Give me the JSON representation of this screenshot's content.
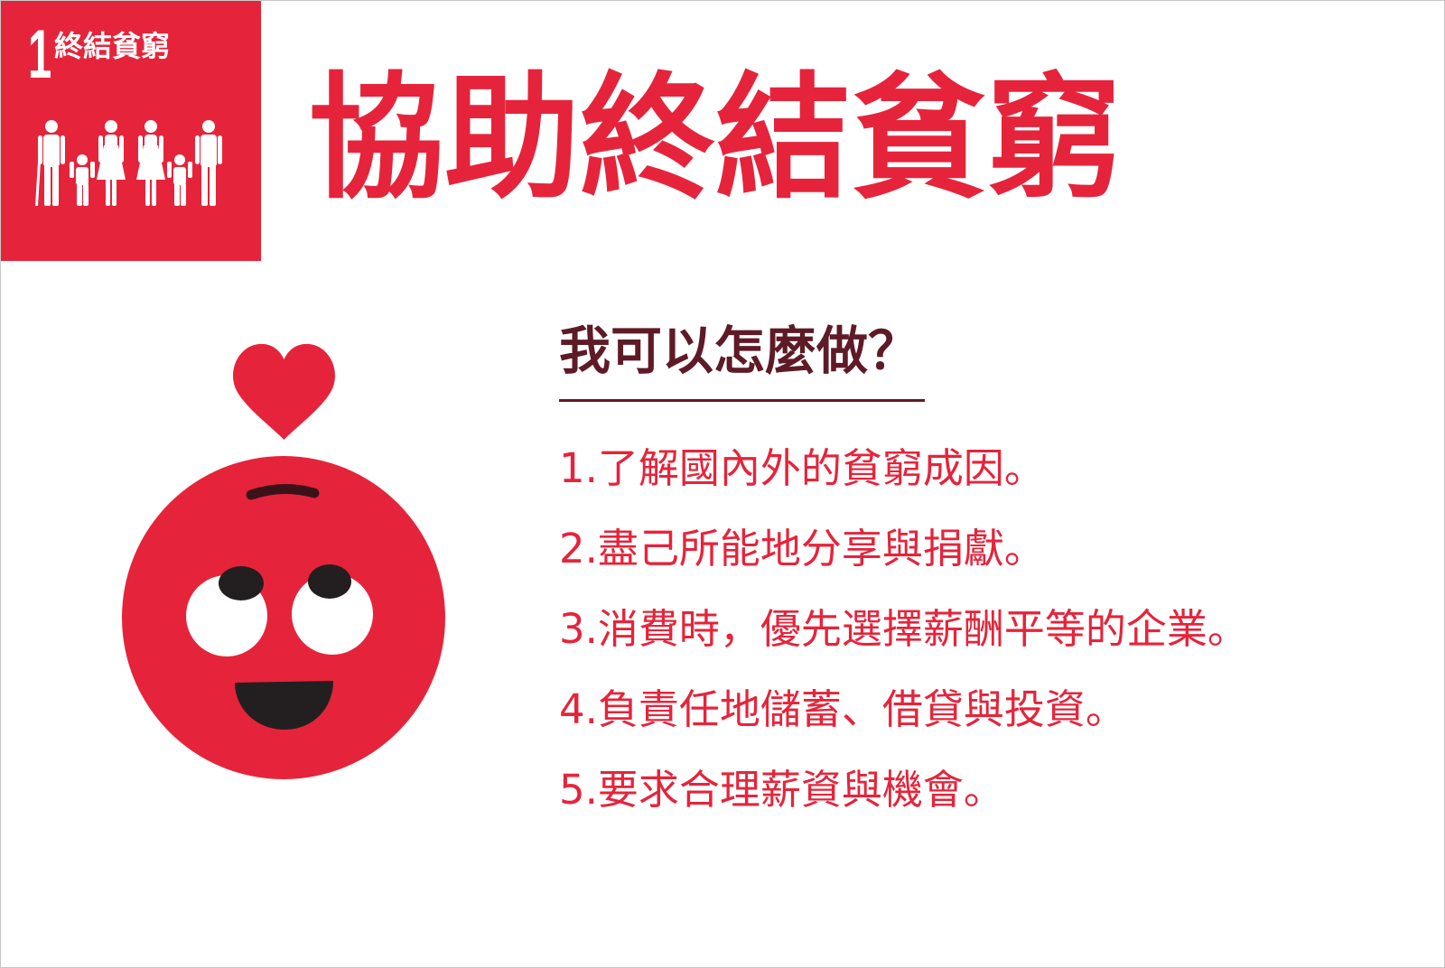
{
  "badge": {
    "number": "1",
    "label": "終結貧窮",
    "icon": "family-icon"
  },
  "title": "協助終結貧窮",
  "illustration": {
    "heart_icon": "heart-icon",
    "face_icon": "smiley-face-icon"
  },
  "actions": {
    "heading": "我可以怎麼做？",
    "items": [
      "1.了解國內外的貧窮成因。",
      "2.盡己所能地分享與捐獻。",
      "3.消費時，優先選擇薪酬平等的企業。",
      "4.負責任地儲蓄、借貸與投資。",
      "5.要求合理薪資與機會。"
    ]
  },
  "colors": {
    "red": "#e5243b",
    "heading": "#5e1b27",
    "dark": "#231f20",
    "background": "#ffffff"
  }
}
